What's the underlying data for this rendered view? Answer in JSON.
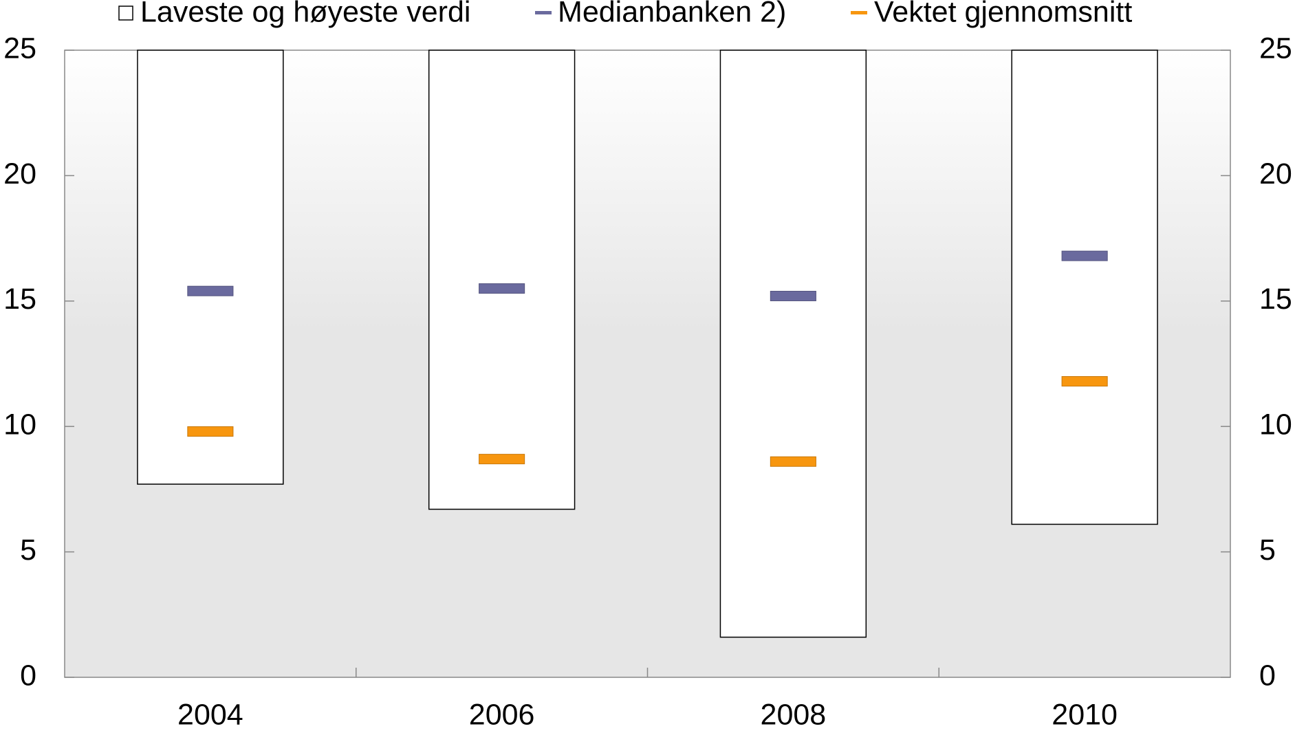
{
  "chart_data": {
    "type": "range_bar",
    "categories": [
      "2004",
      "2006",
      "2008",
      "2010"
    ],
    "range": {
      "name": "Laveste og høyeste verdi",
      "color": "#ffffff",
      "low": [
        7.7,
        6.7,
        1.6,
        6.1
      ],
      "high": [
        25,
        25,
        25,
        25
      ]
    },
    "series": [
      {
        "name": "Medianbanken 2)",
        "color": "#6a6a9e",
        "values": [
          15.4,
          15.5,
          15.2,
          16.8
        ]
      },
      {
        "name": "Vektet gjennomsnitt",
        "color": "#f7960f",
        "values": [
          9.8,
          8.7,
          8.6,
          11.8
        ]
      }
    ],
    "ylim": [
      0,
      25
    ],
    "yticks": [
      0,
      5,
      10,
      15,
      20,
      25
    ],
    "y2lim": [
      0,
      25
    ],
    "y2ticks": [
      0,
      5,
      10,
      15,
      20,
      25
    ],
    "legend": "top"
  }
}
